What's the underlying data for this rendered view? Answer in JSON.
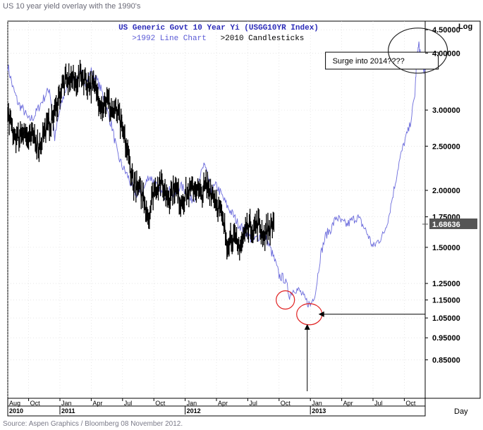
{
  "page": {
    "title": "US 10 year yield overlay with the 1990's",
    "source": "Source: Aspen Graphics / Bloomberg 08 November 2012."
  },
  "chart_data": {
    "type": "line",
    "title": "US Generic Govt 10 Year Yi (USGG10YR Index)",
    "subtitle_line": ">1992 Line Chart",
    "subtitle_candle": ">2010 Candlesticks",
    "scale_label": "Log",
    "period_label": "Day",
    "ylim": [
      0.7,
      4.7
    ],
    "yticks": [
      {
        "value": 4.5,
        "label": "4.50000"
      },
      {
        "value": 4.0,
        "label": "4.00000"
      },
      {
        "value": 3.0,
        "label": "3.00000"
      },
      {
        "value": 2.5,
        "label": "2.50000"
      },
      {
        "value": 2.0,
        "label": "2.00000"
      },
      {
        "value": 1.75,
        "label": "1.75000"
      },
      {
        "value": 1.5,
        "label": "1.50000"
      },
      {
        "value": 1.25,
        "label": "1.25000"
      },
      {
        "value": 1.15,
        "label": "1.15000"
      },
      {
        "value": 1.05,
        "label": "1.05000"
      },
      {
        "value": 0.95,
        "label": "0.95000"
      },
      {
        "value": 0.85,
        "label": "0.85000"
      }
    ],
    "last_value": {
      "value": 1.68636,
      "label": "1.68636"
    },
    "xlim": [
      0,
      40
    ],
    "month_ticks": [
      {
        "x": 0,
        "label": "Aug"
      },
      {
        "x": 2,
        "label": "Oct"
      },
      {
        "x": 5,
        "label": "Jan"
      },
      {
        "x": 8,
        "label": "Apr"
      },
      {
        "x": 11,
        "label": "Jul"
      },
      {
        "x": 14,
        "label": "Oct"
      },
      {
        "x": 17,
        "label": "Jan"
      },
      {
        "x": 20,
        "label": "Apr"
      },
      {
        "x": 23,
        "label": "Jul"
      },
      {
        "x": 26,
        "label": "Oct"
      },
      {
        "x": 29,
        "label": "Jan"
      },
      {
        "x": 32,
        "label": "Apr"
      },
      {
        "x": 35,
        "label": "Jul"
      },
      {
        "x": 38,
        "label": "Oct"
      }
    ],
    "year_ticks": [
      {
        "x": 0,
        "label": "2010"
      },
      {
        "x": 5,
        "label": "2011"
      },
      {
        "x": 17,
        "label": "2012"
      },
      {
        "x": 29,
        "label": "2013"
      }
    ],
    "series": [
      {
        "name": ">1992 Line Chart",
        "color": "#6c6cdc",
        "style": "line",
        "points": [
          [
            0,
            3.75
          ],
          [
            0.5,
            3.35
          ],
          [
            1,
            3.1
          ],
          [
            1.5,
            3.0
          ],
          [
            2,
            2.85
          ],
          [
            2.5,
            2.9
          ],
          [
            3,
            3.05
          ],
          [
            3.5,
            3.2
          ],
          [
            4,
            3.35
          ],
          [
            4.5,
            2.6
          ],
          [
            5,
            3.0
          ],
          [
            5.5,
            3.3
          ],
          [
            6,
            3.55
          ],
          [
            6.5,
            3.5
          ],
          [
            7,
            3.6
          ],
          [
            7.5,
            3.45
          ],
          [
            8,
            3.65
          ],
          [
            8.5,
            3.5
          ],
          [
            9,
            3.3
          ],
          [
            9.5,
            3.0
          ],
          [
            10,
            2.75
          ],
          [
            10.5,
            2.4
          ],
          [
            11,
            2.25
          ],
          [
            11.5,
            2.15
          ],
          [
            12,
            2.0
          ],
          [
            12.5,
            1.95
          ],
          [
            13,
            2.0
          ],
          [
            13.5,
            2.15
          ],
          [
            14,
            2.1
          ],
          [
            14.5,
            2.0
          ],
          [
            15,
            1.95
          ],
          [
            15.5,
            2.0
          ],
          [
            16,
            1.95
          ],
          [
            16.5,
            2.05
          ],
          [
            17,
            2.0
          ],
          [
            17.5,
            1.9
          ],
          [
            18,
            1.95
          ],
          [
            18.5,
            2.15
          ],
          [
            18.8,
            2.3
          ],
          [
            19,
            2.2
          ],
          [
            19.5,
            2.0
          ],
          [
            20,
            2.05
          ],
          [
            20.5,
            1.95
          ],
          [
            21,
            1.85
          ],
          [
            21.5,
            1.78
          ],
          [
            22,
            1.7
          ],
          [
            22.5,
            1.65
          ],
          [
            23,
            1.6
          ],
          [
            23.5,
            1.55
          ],
          [
            24,
            1.58
          ],
          [
            24.5,
            1.62
          ],
          [
            25,
            1.52
          ],
          [
            25.5,
            1.42
          ],
          [
            26,
            1.3
          ],
          [
            26.5,
            1.28
          ],
          [
            27,
            1.18
          ],
          [
            27.5,
            1.22
          ],
          [
            28,
            1.2
          ],
          [
            28.5,
            1.15
          ],
          [
            29,
            1.12
          ],
          [
            29.5,
            1.2
          ],
          [
            30,
            1.45
          ],
          [
            30.5,
            1.6
          ],
          [
            31,
            1.65
          ],
          [
            31.5,
            1.75
          ],
          [
            32,
            1.7
          ],
          [
            32.5,
            1.68
          ],
          [
            33,
            1.72
          ],
          [
            33.5,
            1.75
          ],
          [
            34,
            1.68
          ],
          [
            34.5,
            1.6
          ],
          [
            35,
            1.5
          ],
          [
            35.5,
            1.55
          ],
          [
            36,
            1.6
          ],
          [
            36.5,
            1.75
          ],
          [
            37,
            2.0
          ],
          [
            37.5,
            2.3
          ],
          [
            38,
            2.55
          ],
          [
            38.5,
            2.75
          ],
          [
            39,
            3.2
          ],
          [
            39.2,
            3.9
          ],
          [
            39.4,
            4.2
          ],
          [
            39.6,
            3.8
          ],
          [
            40,
            3.65
          ]
        ]
      },
      {
        "name": ">2010 Candlesticks",
        "color": "#000000",
        "style": "bars",
        "points": [
          [
            0,
            2.9
          ],
          [
            0.5,
            2.7
          ],
          [
            1,
            2.6
          ],
          [
            1.5,
            2.75
          ],
          [
            2,
            2.55
          ],
          [
            2.5,
            2.65
          ],
          [
            3,
            2.5
          ],
          [
            3.5,
            2.7
          ],
          [
            4,
            2.8
          ],
          [
            4.5,
            2.95
          ],
          [
            5,
            3.3
          ],
          [
            5.5,
            3.45
          ],
          [
            6,
            3.5
          ],
          [
            6.5,
            3.45
          ],
          [
            7,
            3.6
          ],
          [
            7.5,
            3.5
          ],
          [
            8,
            3.4
          ],
          [
            8.5,
            3.3
          ],
          [
            9,
            3.1
          ],
          [
            9.5,
            3.15
          ],
          [
            10,
            3.0
          ],
          [
            10.5,
            2.95
          ],
          [
            11,
            2.7
          ],
          [
            11.5,
            2.4
          ],
          [
            12,
            2.1
          ],
          [
            12.5,
            2.0
          ],
          [
            13,
            1.95
          ],
          [
            13.5,
            1.75
          ],
          [
            14,
            2.0
          ],
          [
            14.5,
            2.1
          ],
          [
            15,
            2.0
          ],
          [
            15.5,
            1.95
          ],
          [
            16,
            2.05
          ],
          [
            16.5,
            1.9
          ],
          [
            17,
            1.95
          ],
          [
            17.5,
            2.0
          ],
          [
            18,
            2.05
          ],
          [
            18.5,
            1.95
          ],
          [
            19,
            2.05
          ],
          [
            19.5,
            2.0
          ],
          [
            20,
            1.9
          ],
          [
            20.5,
            1.75
          ],
          [
            21,
            1.55
          ],
          [
            21.5,
            1.6
          ],
          [
            22,
            1.5
          ],
          [
            22.5,
            1.55
          ],
          [
            23,
            1.7
          ],
          [
            23.5,
            1.65
          ],
          [
            24,
            1.7
          ],
          [
            24.5,
            1.6
          ],
          [
            25,
            1.65
          ],
          [
            25.5,
            1.7
          ]
        ]
      }
    ],
    "annotations": [
      {
        "type": "callout",
        "text": "Surge into 2014????",
        "x": 34.5,
        "y": 3.85
      },
      {
        "type": "ellipse",
        "x": 39.3,
        "y": 4.05,
        "color": "#222222"
      },
      {
        "type": "ellipse",
        "x": 26.6,
        "y": 1.15,
        "color": "#e02020"
      },
      {
        "type": "ellipse",
        "x": 28.9,
        "y": 1.07,
        "color": "#e02020"
      }
    ]
  }
}
